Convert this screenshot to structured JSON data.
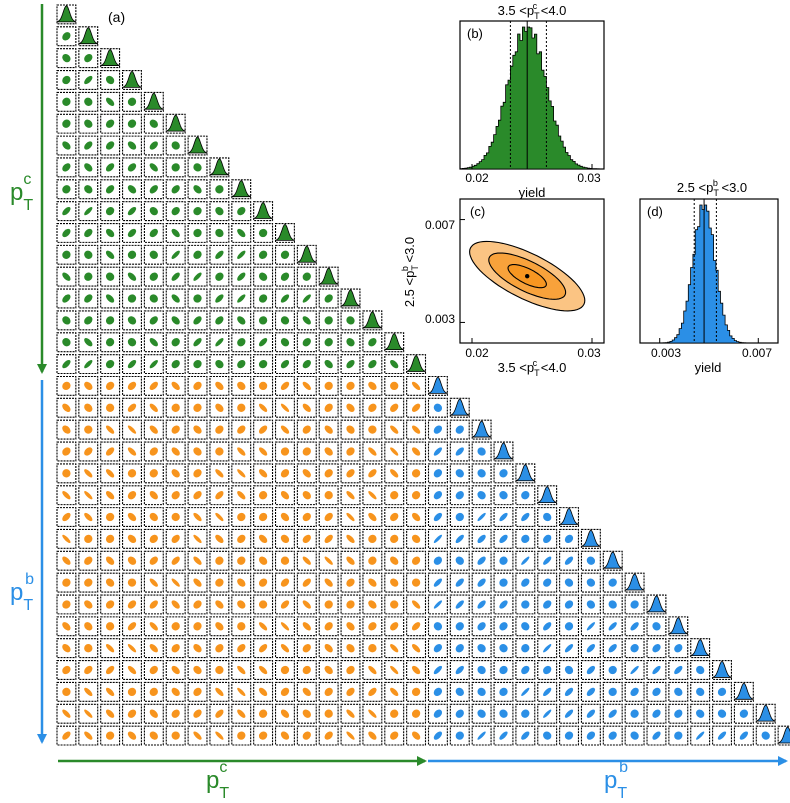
{
  "colors": {
    "charm": "#2a8a2a",
    "cross": "#f7941d",
    "bottom": "#2b8fe6",
    "frame": "#000000"
  },
  "chart_data": [
    {
      "type": "corner",
      "panel": "(a)",
      "n_charm_bins": 17,
      "n_bottom_bins": 17,
      "axis_labels": {
        "charm": {
          "main": "p",
          "sub": "T",
          "sup": "c"
        },
        "bottom": {
          "main": "p",
          "sub": "T",
          "sup": "b"
        }
      },
      "correlations": [
        {
          "block": "charm-charm",
          "color": "charm",
          "rho": [
            0.15,
            -0.55,
            0.35,
            -0.2,
            0.6,
            0.05,
            -0.4,
            0.25,
            0.75,
            -0.1,
            0.45,
            0.1
          ]
        },
        {
          "block": "bottom-charm",
          "color": "cross",
          "rho": [
            -0.7,
            0.2,
            -0.45,
            0.05,
            -0.8,
            0.35,
            -0.25,
            0.1,
            -0.55,
            0.5,
            0.0,
            -0.35,
            0.25,
            -0.65
          ]
        },
        {
          "block": "bottom-bottom",
          "color": "bottom",
          "rho": [
            0.85,
            0.1,
            0.55,
            -0.15,
            0.7,
            0.3,
            0.05,
            -0.1,
            0.6,
            0.2
          ]
        }
      ]
    },
    {
      "type": "histogram",
      "panel": "(b)",
      "title": {
        "pre": "3.5 <p",
        "sub": "T",
        "sup": "c",
        "post": " <4.0"
      },
      "xlabel": "yield",
      "xlim": [
        0.019,
        0.031
      ],
      "xticks": [
        "0.02",
        "0.03"
      ],
      "mean": 0.0246,
      "sigma": 0.0016,
      "quantiles": [
        0.0232,
        0.0246,
        0.0262
      ],
      "color": "charm"
    },
    {
      "type": "contour",
      "panel": "(c)",
      "xlabel": {
        "pre": "3.5 <p",
        "sub": "T",
        "sup": "c",
        "post": " <4.0"
      },
      "ylabel": {
        "pre": "2.5 <p",
        "sub": "T",
        "sup": "b",
        "post": " <3.0"
      },
      "xlim": [
        0.019,
        0.031
      ],
      "ylim": [
        0.0022,
        0.0078
      ],
      "xticks": [
        "0.02",
        "0.03"
      ],
      "yticks": [
        "0.003",
        "0.007"
      ],
      "xticks_val": [
        0.02,
        0.03
      ],
      "yticks_val": [
        0.003,
        0.007
      ],
      "center": [
        0.0246,
        0.0048
      ],
      "sigma": [
        0.0016,
        0.00045
      ],
      "rho": -0.7,
      "levels": [
        1,
        2,
        3
      ],
      "color": "cross"
    },
    {
      "type": "histogram",
      "panel": "(d)",
      "title": {
        "pre": "2.5 <p",
        "sub": "T",
        "sup": "b",
        "post": " <3.0"
      },
      "xlabel": "yield",
      "xlim": [
        0.0022,
        0.0078
      ],
      "xticks": [
        "0.003",
        "0.007"
      ],
      "mean": 0.0048,
      "sigma": 0.00045,
      "quantiles": [
        0.0044,
        0.0048,
        0.0053
      ],
      "color": "bottom"
    }
  ]
}
